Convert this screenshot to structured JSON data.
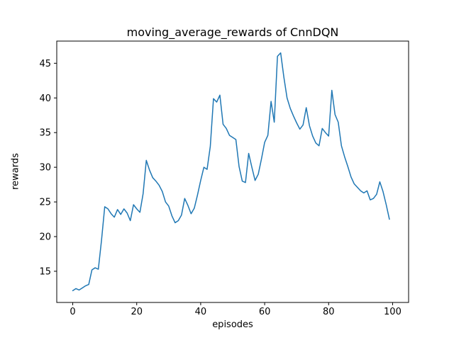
{
  "chart_data": {
    "type": "line",
    "title": "moving_average_rewards of CnnDQN",
    "xlabel": "episodes",
    "ylabel": "rewards",
    "xlim": [
      -5,
      105
    ],
    "ylim": [
      10.5,
      48.2
    ],
    "x_ticks": [
      0,
      20,
      40,
      60,
      80,
      100
    ],
    "y_ticks": [
      15,
      20,
      25,
      30,
      35,
      40,
      45
    ],
    "grid": false,
    "legend": "none",
    "line_color": "#1f77b4",
    "x": [
      0,
      1,
      2,
      3,
      4,
      5,
      6,
      7,
      8,
      9,
      10,
      11,
      12,
      13,
      14,
      15,
      16,
      17,
      18,
      19,
      20,
      21,
      22,
      23,
      24,
      25,
      26,
      27,
      28,
      29,
      30,
      31,
      32,
      33,
      34,
      35,
      36,
      37,
      38,
      39,
      40,
      41,
      42,
      43,
      44,
      45,
      46,
      47,
      48,
      49,
      50,
      51,
      52,
      53,
      54,
      55,
      56,
      57,
      58,
      59,
      60,
      61,
      62,
      63,
      64,
      65,
      66,
      67,
      68,
      69,
      70,
      71,
      72,
      73,
      74,
      75,
      76,
      77,
      78,
      79,
      80,
      81,
      82,
      83,
      84,
      85,
      86,
      87,
      88,
      89,
      90,
      91,
      92,
      93,
      94,
      95,
      96,
      97,
      98,
      99
    ],
    "values": [
      12.2,
      12.5,
      12.3,
      12.6,
      12.9,
      13.1,
      15.2,
      15.5,
      15.3,
      19.5,
      24.3,
      24.0,
      23.3,
      22.8,
      23.9,
      23.2,
      24.0,
      23.4,
      22.3,
      24.6,
      24.0,
      23.5,
      26.2,
      31.0,
      29.6,
      28.5,
      28.0,
      27.4,
      26.5,
      25.0,
      24.4,
      23.0,
      22.0,
      22.3,
      23.1,
      25.5,
      24.5,
      23.3,
      24.1,
      26.0,
      28.1,
      30.0,
      29.7,
      33.0,
      39.9,
      39.4,
      40.4,
      36.2,
      35.6,
      34.6,
      34.3,
      34.0,
      30.1,
      28.0,
      27.8,
      32.0,
      30.0,
      28.1,
      29.0,
      31.2,
      33.6,
      34.6,
      39.5,
      36.5,
      46.0,
      46.5,
      43.0,
      40.0,
      38.5,
      37.4,
      36.4,
      35.5,
      36.1,
      38.6,
      36.0,
      34.5,
      33.5,
      33.1,
      35.6,
      35.0,
      34.5,
      41.1,
      37.6,
      36.5,
      33.1,
      31.5,
      30.1,
      28.6,
      27.6,
      27.1,
      26.6,
      26.3,
      26.6,
      25.3,
      25.5,
      26.1,
      27.9,
      26.5,
      24.6,
      22.5
    ]
  }
}
